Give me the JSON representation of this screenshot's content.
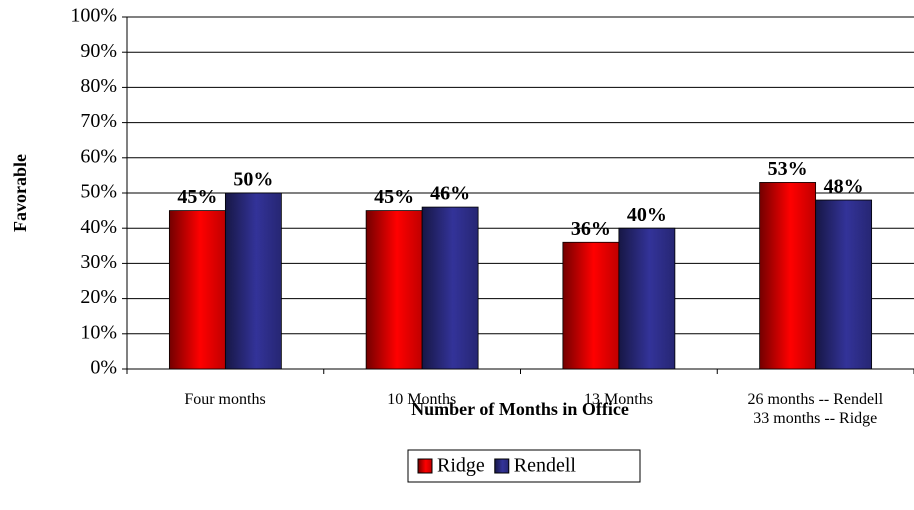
{
  "chart_data": {
    "type": "bar",
    "x_label": "Number of Months in Office",
    "y_label": "Favorable",
    "categories": [
      "Four months",
      "10 Months",
      "13 Months",
      "26 months -- Rendell\n33 months -- Ridge"
    ],
    "series": [
      {
        "name": "Ridge",
        "color": "#ff0000",
        "values": [
          45,
          45,
          36,
          53
        ],
        "value_labels": [
          "45%",
          "45%",
          "36%",
          "53%"
        ]
      },
      {
        "name": "Rendell",
        "color": "#333399",
        "values": [
          50,
          46,
          40,
          48
        ],
        "value_labels": [
          "50%",
          "46%",
          "40%",
          "48%"
        ]
      }
    ],
    "ylim": [
      0,
      100
    ],
    "yticks": [
      {
        "value": 0,
        "label": "0%"
      },
      {
        "value": 10,
        "label": "10%"
      },
      {
        "value": 20,
        "label": "20%"
      },
      {
        "value": 30,
        "label": "30%"
      },
      {
        "value": 40,
        "label": "40%"
      },
      {
        "value": 50,
        "label": "50%"
      },
      {
        "value": 60,
        "label": "60%"
      },
      {
        "value": 70,
        "label": "70%"
      },
      {
        "value": 80,
        "label": "80%"
      },
      {
        "value": 90,
        "label": "90%"
      },
      {
        "value": 100,
        "label": "100%"
      }
    ],
    "grid": true,
    "legend": "bottom"
  }
}
